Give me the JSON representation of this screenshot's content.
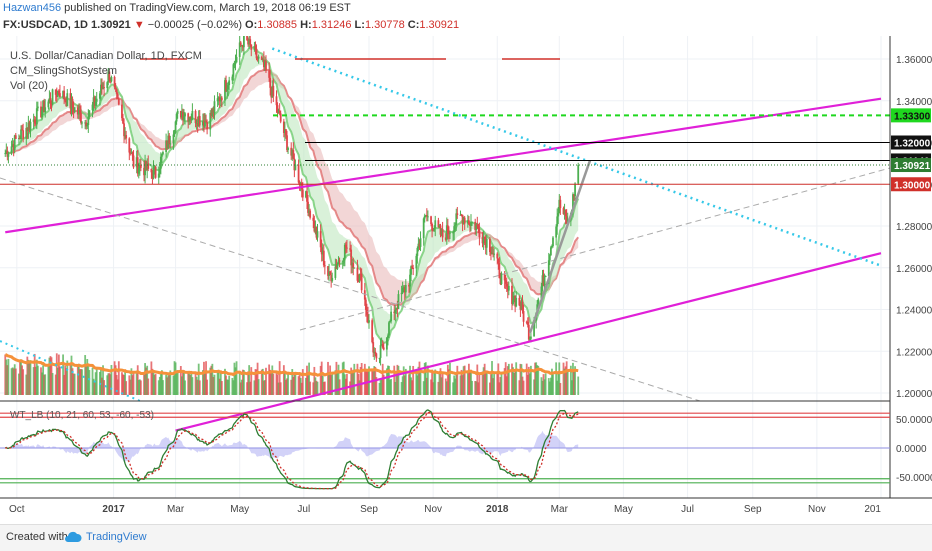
{
  "header": {
    "user": "Hazwan456",
    "published_text": "published on TradingView.com, March 19, 2018 06:19 EST",
    "symbol": "FX:USDCAD, 1D",
    "last": "1.30921",
    "arrow": "▼",
    "change": "−0.00025 (−0.02%)",
    "o_label": "O:",
    "o": "1.30885",
    "h_label": "H:",
    "h": "1.31246",
    "l_label": "L:",
    "l": "1.30778",
    "c_label": "C:",
    "c": "1.30921"
  },
  "legend": {
    "title": "U.S. Dollar/Canadian Dollar, 1D, FXCM",
    "indicator": "CM_SlingShotSystem",
    "volume": "Vol (20)",
    "osc": "WT_LB (10, 21, 60, 53, -60, -53)"
  },
  "footer": {
    "created_with": "Created with",
    "brand": "TradingView",
    "icon": "cloud-icon"
  },
  "colors": {
    "up": "#4caf50",
    "down": "#e0464a",
    "channel": "#e020d8",
    "trend_cyan": "#35c8e8",
    "resistance_green": "#1fd81f",
    "support_red": "#d0302a",
    "volume_ma": "#f5913a",
    "ema_fast_fill": "#b9e6b9",
    "ema_slow_fill": "#e8b4b4"
  },
  "chart_data": [
    {
      "type": "candlestick",
      "title": "U.S. Dollar/Canadian Dollar, 1D, FXCM",
      "symbol": "USDCAD",
      "timeframe": "1D",
      "ylim": [
        1.19,
        1.37
      ],
      "y_ticks": [
        "1.20000",
        "1.22000",
        "1.24000",
        "1.26000",
        "1.28000",
        "1.30000",
        "1.32000",
        "1.34000",
        "1.36000"
      ],
      "x_ticks": [
        "Oct",
        "2017",
        "Mar",
        "May",
        "Jul",
        "Sep",
        "Nov",
        "2018",
        "Mar",
        "May",
        "Jul",
        "Sep",
        "Nov",
        "201"
      ],
      "close_path": [
        [
          "2016-09-20",
          1.315
        ],
        [
          "2016-10-15",
          1.33
        ],
        [
          "2016-11-10",
          1.345
        ],
        [
          "2016-12-05",
          1.33
        ],
        [
          "2016-12-28",
          1.353
        ],
        [
          "2017-01-20",
          1.31
        ],
        [
          "2017-02-10",
          1.305
        ],
        [
          "2017-03-05",
          1.335
        ],
        [
          "2017-04-01",
          1.33
        ],
        [
          "2017-04-20",
          1.35
        ],
        [
          "2017-05-05",
          1.37
        ],
        [
          "2017-05-25",
          1.355
        ],
        [
          "2017-06-15",
          1.32
        ],
        [
          "2017-07-05",
          1.29
        ],
        [
          "2017-07-25",
          1.255
        ],
        [
          "2017-08-10",
          1.27
        ],
        [
          "2017-08-25",
          1.253
        ],
        [
          "2017-09-08",
          1.213
        ],
        [
          "2017-09-25",
          1.24
        ],
        [
          "2017-10-10",
          1.255
        ],
        [
          "2017-10-25",
          1.285
        ],
        [
          "2017-11-10",
          1.275
        ],
        [
          "2017-11-28",
          1.285
        ],
        [
          "2017-12-12",
          1.28
        ],
        [
          "2017-12-26",
          1.27
        ],
        [
          "2018-01-08",
          1.25
        ],
        [
          "2018-01-22",
          1.243
        ],
        [
          "2018-02-01",
          1.228
        ],
        [
          "2018-02-15",
          1.257
        ],
        [
          "2018-03-01",
          1.29
        ],
        [
          "2018-03-10",
          1.28
        ],
        [
          "2018-03-19",
          1.3092
        ]
      ],
      "horizontal_levels": [
        {
          "label": "1.33300",
          "value": 1.333,
          "style": "dashed",
          "color": "#1fd81f"
        },
        {
          "label": "1.32000",
          "value": 1.32,
          "style": "solid",
          "color": "#000000"
        },
        {
          "label": "1.31140",
          "value": 1.3114,
          "style": "solid",
          "color": "#000000"
        },
        {
          "label": "1.30921",
          "value": 1.30921,
          "style": "dotted",
          "color": "#2e7d32"
        },
        {
          "label": "1.30000",
          "value": 1.3,
          "style": "solid",
          "color": "#d0302a"
        }
      ],
      "channel_lines": [
        {
          "from": [
            "2016-09-20",
            1.277
          ],
          "to": [
            "2019-01-01",
            1.341
          ]
        },
        {
          "from": [
            "2017-03-01",
            1.182
          ],
          "to": [
            "2019-01-01",
            1.267
          ]
        }
      ],
      "cyan_trendline": {
        "from": [
          "2017-06-01",
          1.365
        ],
        "to": [
          "2019-01-01",
          1.261
        ]
      }
    },
    {
      "type": "bar",
      "title": "Vol (20)",
      "series": [
        {
          "name": "Vol (20)"
        }
      ]
    },
    {
      "type": "line",
      "title": "WT_LB (10, 21, 60, 53, -60, -53)",
      "y_ticks": [
        "50.0000",
        "0.0000",
        "-50.0000"
      ],
      "levels": [
        60,
        53,
        -60,
        -53
      ],
      "ylim": [
        -65,
        70
      ]
    }
  ]
}
